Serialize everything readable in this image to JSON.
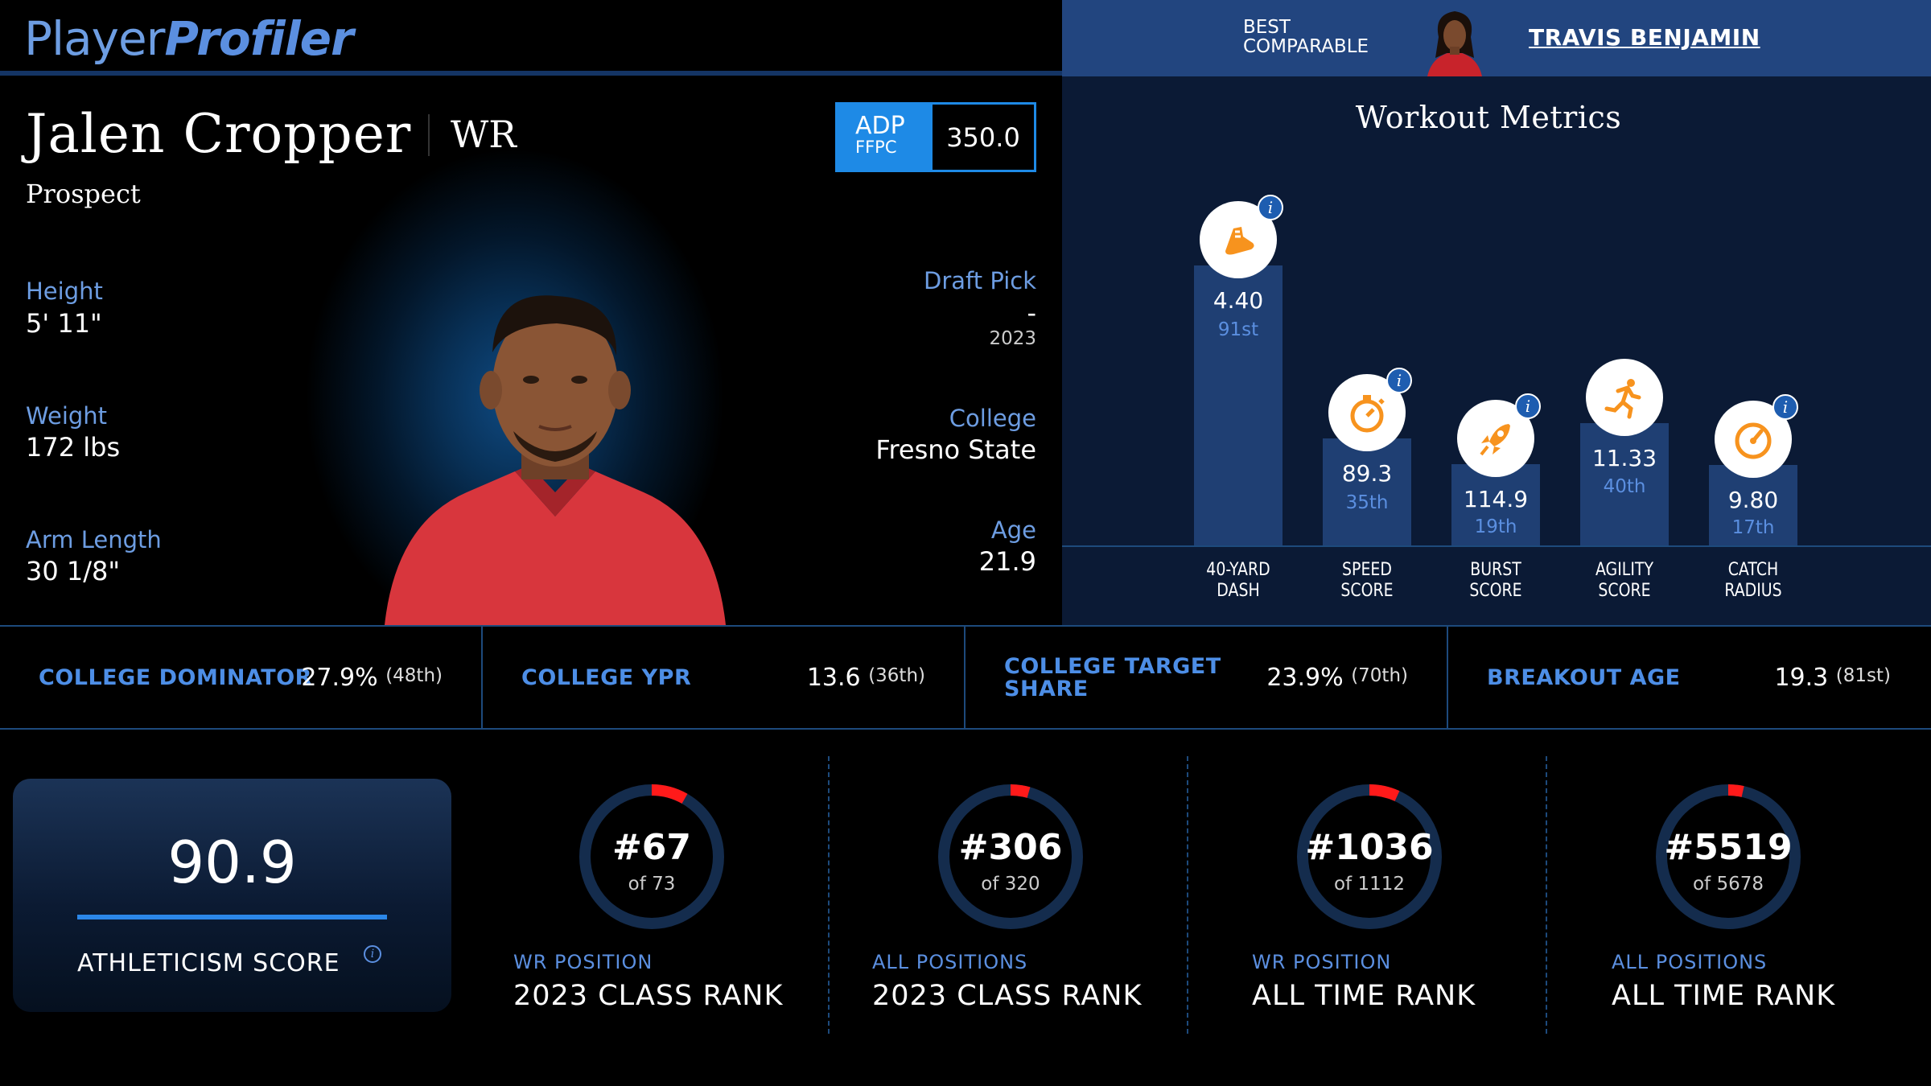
{
  "header": {
    "logo_part1": "Player",
    "logo_part2": "Profiler",
    "comparable_label_line1": "BEST",
    "comparable_label_line2": "COMPARABLE",
    "comparable_name": "TRAVIS BENJAMIN"
  },
  "player": {
    "name": "Jalen Cropper",
    "position": "WR",
    "status": "Prospect",
    "adp_label": "ADP",
    "adp_source": "FFPC",
    "adp_value": "350.0",
    "height_label": "Height",
    "height": "5' 11\"",
    "weight_label": "Weight",
    "weight": "172 lbs",
    "arm_label": "Arm Length",
    "arm": "30 1/8\"",
    "draft_label": "Draft Pick",
    "draft_pick": "-",
    "draft_year": "2023",
    "college_label": "College",
    "college": "Fresno State",
    "age_label": "Age",
    "age": "21.9"
  },
  "workout": {
    "title": "Workout Metrics",
    "metrics": [
      {
        "label1": "40-YARD",
        "label2": "DASH",
        "value": "4.40",
        "percentile": "91st",
        "percentile_num": 91,
        "icon": "running-shoe-icon"
      },
      {
        "label1": "SPEED",
        "label2": "SCORE",
        "value": "89.3",
        "percentile": "35th",
        "percentile_num": 35,
        "icon": "stopwatch-icon"
      },
      {
        "label1": "BURST",
        "label2": "SCORE",
        "value": "114.9",
        "percentile": "19th",
        "percentile_num": 19,
        "icon": "rocket-icon"
      },
      {
        "label1": "AGILITY",
        "label2": "SCORE",
        "value": "11.33",
        "percentile": "40th",
        "percentile_num": 40,
        "icon": "running-person-icon"
      },
      {
        "label1": "CATCH",
        "label2": "RADIUS",
        "value": "9.80",
        "percentile": "17th",
        "percentile_num": 17,
        "icon": "gauge-icon"
      }
    ]
  },
  "college_metrics": [
    {
      "label": "COLLEGE DOMINATOR",
      "value": "27.9%",
      "percentile": "(48th)"
    },
    {
      "label": "COLLEGE YPR",
      "value": "13.6",
      "percentile": "(36th)"
    },
    {
      "label_line1": "COLLEGE TARGET",
      "label_line2": "SHARE",
      "value": "23.9%",
      "percentile": "(70th)"
    },
    {
      "label": "BREAKOUT AGE",
      "value": "19.3",
      "percentile": "(81st)"
    }
  ],
  "athleticism": {
    "score": "90.9",
    "label": "ATHLETICISM SCORE",
    "info": "i"
  },
  "ranks": [
    {
      "rank": "#67",
      "of": "of 73",
      "rank_num": 67,
      "total": 73,
      "subtitle": "WR POSITION",
      "title": "2023 CLASS RANK"
    },
    {
      "rank": "#306",
      "of": "of 320",
      "rank_num": 306,
      "total": 320,
      "subtitle": "ALL POSITIONS",
      "title": "2023 CLASS RANK"
    },
    {
      "rank": "#1036",
      "of": "of 1112",
      "rank_num": 1036,
      "total": 1112,
      "subtitle": "WR POSITION",
      "title": "ALL TIME RANK"
    },
    {
      "rank": "#5519",
      "of": "of 5678",
      "rank_num": 5519,
      "total": 5678,
      "subtitle": "ALL POSITIONS",
      "title": "ALL TIME RANK"
    }
  ],
  "colors": {
    "accent_blue": "#1e8ae6",
    "label_blue": "#6d9de2",
    "icon_orange": "#f7931e",
    "ring_track": "#142c4d",
    "ring_fill": "#ff1a1a",
    "bar_fill": "#1f3f73"
  }
}
